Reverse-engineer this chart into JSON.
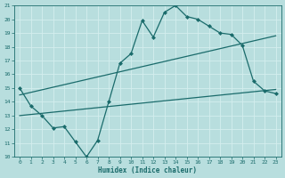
{
  "xlabel": "Humidex (Indice chaleur)",
  "background_color": "#b8dede",
  "grid_color": "#d4eeee",
  "line_color": "#1a6b6b",
  "xlim": [
    -0.5,
    23.5
  ],
  "ylim": [
    10,
    21
  ],
  "xticks": [
    0,
    1,
    2,
    3,
    4,
    5,
    6,
    7,
    8,
    9,
    10,
    11,
    12,
    13,
    14,
    15,
    16,
    17,
    18,
    19,
    20,
    21,
    22,
    23
  ],
  "yticks": [
    10,
    11,
    12,
    13,
    14,
    15,
    16,
    17,
    18,
    19,
    20,
    21
  ],
  "line1_x": [
    0,
    1,
    2,
    3,
    4,
    5,
    6,
    7,
    8,
    9,
    10,
    11,
    12,
    13,
    14,
    15,
    16,
    17,
    18,
    19,
    20,
    21,
    22,
    23
  ],
  "line1_y": [
    15,
    13.7,
    13,
    12.1,
    12.2,
    11.1,
    10.0,
    11.2,
    14.0,
    16.8,
    17.5,
    19.9,
    18.7,
    20.5,
    21.0,
    20.2,
    20.0,
    19.5,
    19.0,
    18.9,
    18.1,
    15.5,
    14.8,
    14.6
  ],
  "line2_x": [
    0,
    23
  ],
  "line2_y": [
    14.5,
    18.8
  ],
  "line3_x": [
    0,
    23
  ],
  "line3_y": [
    13.0,
    14.9
  ],
  "marker": "D",
  "markersize": 2.0,
  "linewidth": 0.9
}
